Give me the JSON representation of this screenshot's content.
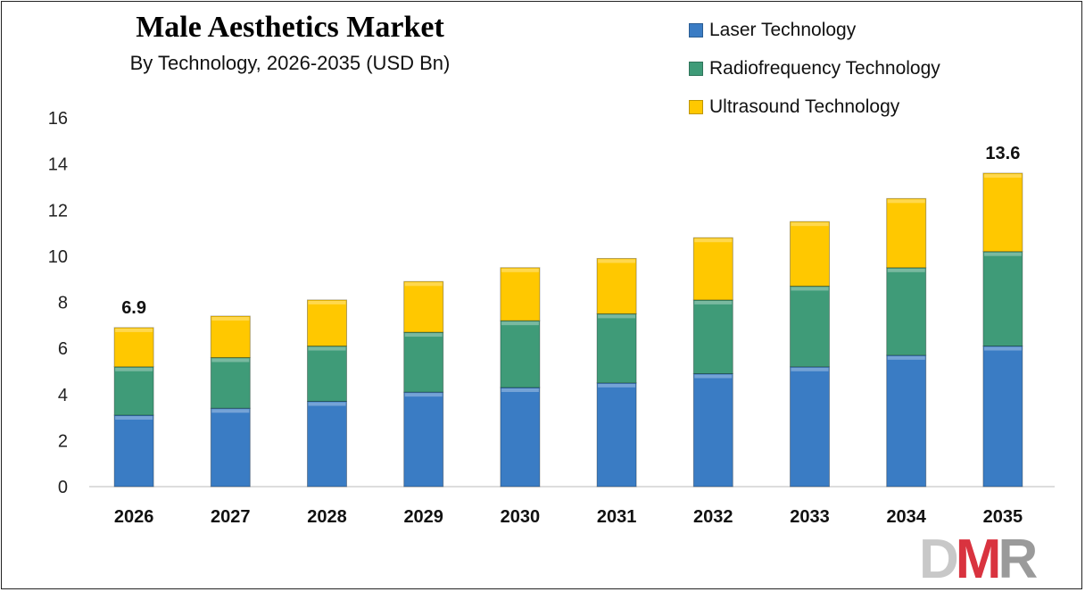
{
  "chart_data": {
    "type": "bar",
    "stacked": true,
    "title": "Male Aesthetics Market",
    "subtitle": "By Technology, 2026-2035 (USD Bn)",
    "categories": [
      "2026",
      "2027",
      "2028",
      "2029",
      "2030",
      "2031",
      "2032",
      "2033",
      "2034",
      "2035"
    ],
    "series": [
      {
        "name": "Laser Technology",
        "color": "#3a7cc4",
        "values": [
          3.1,
          3.4,
          3.7,
          4.1,
          4.3,
          4.5,
          4.9,
          5.2,
          5.7,
          6.1
        ]
      },
      {
        "name": "Radiofrequency Technology",
        "color": "#3f9b78",
        "values": [
          2.1,
          2.2,
          2.4,
          2.6,
          2.9,
          3.0,
          3.2,
          3.5,
          3.8,
          4.1
        ]
      },
      {
        "name": "Ultrasound Technology",
        "color": "#ffc800",
        "values": [
          1.7,
          1.8,
          2.0,
          2.2,
          2.3,
          2.4,
          2.7,
          2.8,
          3.0,
          3.4
        ]
      }
    ],
    "data_labels": [
      {
        "category": "2026",
        "text": "6.9"
      },
      {
        "category": "2035",
        "text": "13.6"
      }
    ],
    "ylim": [
      0,
      16
    ],
    "yticks": [
      "0",
      "2",
      "4",
      "6",
      "8",
      "10",
      "12",
      "14",
      "16"
    ],
    "grid": false,
    "legend": "top-right",
    "xlabel": "",
    "ylabel": ""
  },
  "logo": {
    "text": "DMR",
    "colors": [
      "#c8c8c8",
      "#d9333f",
      "#9a9a9a"
    ]
  }
}
